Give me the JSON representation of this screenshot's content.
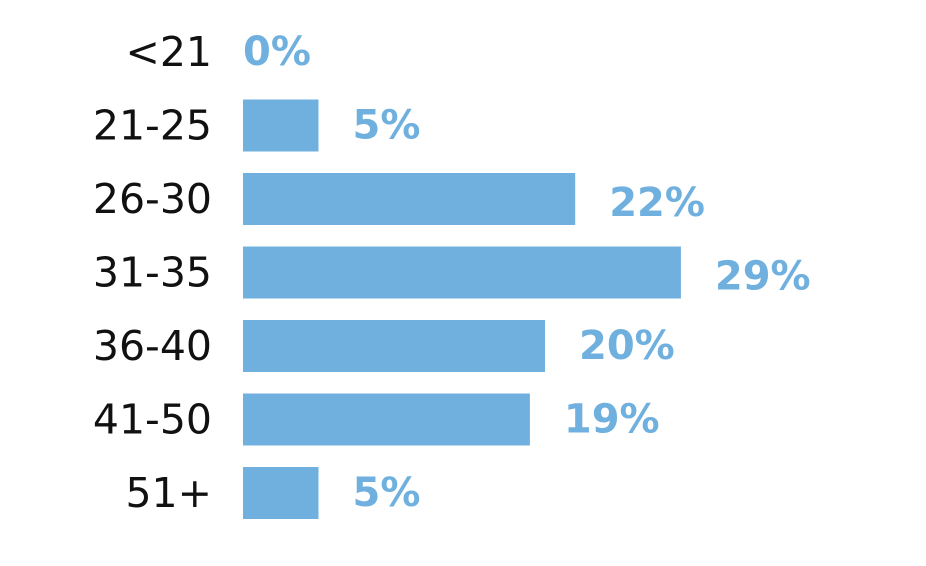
{
  "chart_data": {
    "type": "bar",
    "orientation": "horizontal",
    "categories": [
      "<21",
      "21-25",
      "26-30",
      "31-35",
      "36-40",
      "41-50",
      "51+"
    ],
    "values": [
      0,
      5,
      22,
      29,
      20,
      19,
      5
    ],
    "value_labels": [
      "0%",
      "5%",
      "22%",
      "29%",
      "20%",
      "19%",
      "5%"
    ],
    "unit": "%",
    "title": "",
    "xlabel": "",
    "ylabel": "",
    "grid": false,
    "legend": "none",
    "colors": {
      "bar": "#6fb0de",
      "value_label": "#6fb0de",
      "category_label": "#111111"
    }
  }
}
